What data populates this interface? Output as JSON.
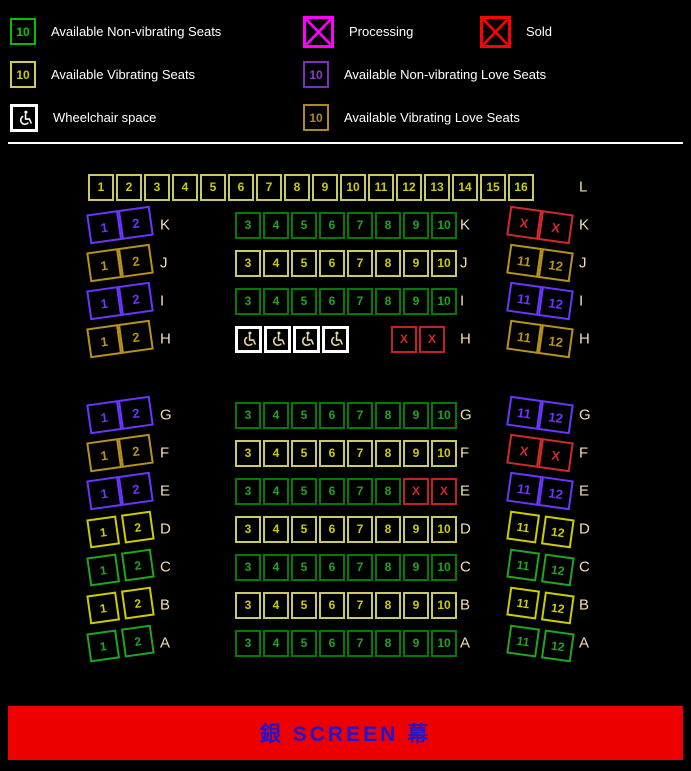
{
  "colors": {
    "background": "#000000",
    "legend_green": "#00c000",
    "legend_vibrating": "#cccc5e",
    "legend_purple": "#7b2fbe",
    "legend_gold": "#aa8822",
    "processing_magenta": "#ff00ff",
    "sold_red": "#ff0000",
    "map_green": "#007d00",
    "map_yellow": "#cccc00",
    "map_purple": "#a51ef0",
    "map_dark_gold": "#a8860b",
    "map_sold_red": "#c32222",
    "wheelchair_white": "#ffffff",
    "row_label_wheat": "#f5deb3",
    "screen_bg": "#ee0000",
    "screen_text": "#2217cc"
  },
  "legend": {
    "rows": [
      [
        {
          "col": 1,
          "box": "green",
          "value": "10",
          "label": "Available Non-vibrating Seats"
        },
        {
          "col": 2,
          "box": "magenta_x",
          "label": "Processing"
        },
        {
          "col": 3,
          "box": "red_x",
          "label": "Sold"
        }
      ],
      [
        {
          "col": 1,
          "box": "vib",
          "value": "10",
          "label": "Available Vibrating Seats"
        },
        {
          "col": 2,
          "box": "purple",
          "value": "10",
          "label": "Available Non-vibrating Love Seats"
        }
      ],
      [
        {
          "col": 1,
          "box": "wheelchair",
          "label": "Wheelchair space"
        },
        {
          "col": 2,
          "box": "gold",
          "value": "10",
          "label": "Available Vibrating Love Seats"
        }
      ]
    ]
  },
  "seatmap": {
    "rows": [
      {
        "label": "L",
        "header": true,
        "center": [
          {
            "t": "vib",
            "n": "1"
          },
          {
            "t": "vib",
            "n": "2"
          },
          {
            "t": "vib",
            "n": "3"
          },
          {
            "t": "vib",
            "n": "4"
          },
          {
            "t": "vib",
            "n": "5"
          },
          {
            "t": "vib",
            "n": "6"
          },
          {
            "t": "vib",
            "n": "7"
          },
          {
            "t": "vib",
            "n": "8"
          },
          {
            "t": "vib",
            "n": "9"
          },
          {
            "t": "vib",
            "n": "10"
          },
          {
            "t": "vib",
            "n": "11"
          },
          {
            "t": "vib",
            "n": "12"
          },
          {
            "t": "vib",
            "n": "13"
          },
          {
            "t": "vib",
            "n": "14"
          },
          {
            "t": "vib",
            "n": "15"
          },
          {
            "t": "vib",
            "n": "16"
          }
        ]
      },
      {
        "label": "K",
        "left": {
          "style": "love",
          "type": "purple",
          "seats": [
            "1",
            "2"
          ]
        },
        "center": [
          {
            "t": "green",
            "n": "3"
          },
          {
            "t": "green",
            "n": "4"
          },
          {
            "t": "green",
            "n": "5"
          },
          {
            "t": "green",
            "n": "6"
          },
          {
            "t": "green",
            "n": "7"
          },
          {
            "t": "green",
            "n": "8"
          },
          {
            "t": "green",
            "n": "9"
          },
          {
            "t": "green",
            "n": "10"
          }
        ],
        "right": {
          "style": "love",
          "type": "red",
          "seats": [
            "X",
            "X"
          ]
        }
      },
      {
        "label": "J",
        "left": {
          "style": "love",
          "type": "gold",
          "seats": [
            "1",
            "2"
          ]
        },
        "center": [
          {
            "t": "vib",
            "n": "3"
          },
          {
            "t": "vib",
            "n": "4"
          },
          {
            "t": "vib",
            "n": "5"
          },
          {
            "t": "vib",
            "n": "6"
          },
          {
            "t": "vib",
            "n": "7"
          },
          {
            "t": "vib",
            "n": "8"
          },
          {
            "t": "vib",
            "n": "9"
          },
          {
            "t": "vib",
            "n": "10"
          }
        ],
        "right": {
          "style": "love",
          "type": "gold",
          "seats": [
            "11",
            "12"
          ]
        }
      },
      {
        "label": "I",
        "left": {
          "style": "love",
          "type": "purple",
          "seats": [
            "1",
            "2"
          ]
        },
        "center": [
          {
            "t": "green",
            "n": "3"
          },
          {
            "t": "green",
            "n": "4"
          },
          {
            "t": "green",
            "n": "5"
          },
          {
            "t": "green",
            "n": "6"
          },
          {
            "t": "green",
            "n": "7"
          },
          {
            "t": "green",
            "n": "8"
          },
          {
            "t": "green",
            "n": "9"
          },
          {
            "t": "green",
            "n": "10"
          }
        ],
        "right": {
          "style": "love",
          "type": "purple",
          "seats": [
            "11",
            "12"
          ]
        }
      },
      {
        "label": "H",
        "left": {
          "style": "love",
          "type": "gold",
          "seats": [
            "1",
            "2"
          ]
        },
        "center": [
          {
            "t": "wc"
          },
          {
            "t": "wc"
          },
          {
            "t": "wc"
          },
          {
            "t": "wc"
          },
          {
            "t": "gap"
          },
          {
            "t": "red",
            "n": "X"
          },
          {
            "t": "red",
            "n": "X"
          }
        ],
        "right": {
          "style": "love",
          "type": "gold",
          "seats": [
            "11",
            "12"
          ]
        }
      },
      {
        "label": "G",
        "spacer_before": true,
        "left": {
          "style": "love",
          "type": "purple",
          "seats": [
            "1",
            "2"
          ]
        },
        "center": [
          {
            "t": "green",
            "n": "3"
          },
          {
            "t": "green",
            "n": "4"
          },
          {
            "t": "green",
            "n": "5"
          },
          {
            "t": "green",
            "n": "6"
          },
          {
            "t": "green",
            "n": "7"
          },
          {
            "t": "green",
            "n": "8"
          },
          {
            "t": "green",
            "n": "9"
          },
          {
            "t": "green",
            "n": "10"
          }
        ],
        "right": {
          "style": "love",
          "type": "purple",
          "seats": [
            "11",
            "12"
          ]
        }
      },
      {
        "label": "F",
        "left": {
          "style": "love",
          "type": "gold",
          "seats": [
            "1",
            "2"
          ]
        },
        "center": [
          {
            "t": "vib",
            "n": "3"
          },
          {
            "t": "vib",
            "n": "4"
          },
          {
            "t": "vib",
            "n": "5"
          },
          {
            "t": "vib",
            "n": "6"
          },
          {
            "t": "vib",
            "n": "7"
          },
          {
            "t": "vib",
            "n": "8"
          },
          {
            "t": "vib",
            "n": "9"
          },
          {
            "t": "vib",
            "n": "10"
          }
        ],
        "right": {
          "style": "love",
          "type": "red",
          "seats": [
            "X",
            "X"
          ]
        }
      },
      {
        "label": "E",
        "left": {
          "style": "love",
          "type": "purple",
          "seats": [
            "1",
            "2"
          ]
        },
        "center": [
          {
            "t": "green",
            "n": "3"
          },
          {
            "t": "green",
            "n": "4"
          },
          {
            "t": "green",
            "n": "5"
          },
          {
            "t": "green",
            "n": "6"
          },
          {
            "t": "green",
            "n": "7"
          },
          {
            "t": "green",
            "n": "8"
          },
          {
            "t": "red",
            "n": "X"
          },
          {
            "t": "red",
            "n": "X"
          }
        ],
        "right": {
          "style": "love",
          "type": "purple",
          "seats": [
            "11",
            "12"
          ]
        }
      },
      {
        "label": "D",
        "left": {
          "style": "single",
          "type": "vib",
          "seats": [
            "1",
            "2"
          ]
        },
        "center": [
          {
            "t": "vib",
            "n": "3"
          },
          {
            "t": "vib",
            "n": "4"
          },
          {
            "t": "vib",
            "n": "5"
          },
          {
            "t": "vib",
            "n": "6"
          },
          {
            "t": "vib",
            "n": "7"
          },
          {
            "t": "vib",
            "n": "8"
          },
          {
            "t": "vib",
            "n": "9"
          },
          {
            "t": "vib",
            "n": "10"
          }
        ],
        "right": {
          "style": "single",
          "type": "vib",
          "seats": [
            "11",
            "12"
          ]
        }
      },
      {
        "label": "C",
        "left": {
          "style": "single",
          "type": "green",
          "seats": [
            "1",
            "2"
          ]
        },
        "center": [
          {
            "t": "green",
            "n": "3"
          },
          {
            "t": "green",
            "n": "4"
          },
          {
            "t": "green",
            "n": "5"
          },
          {
            "t": "green",
            "n": "6"
          },
          {
            "t": "green",
            "n": "7"
          },
          {
            "t": "green",
            "n": "8"
          },
          {
            "t": "green",
            "n": "9"
          },
          {
            "t": "green",
            "n": "10"
          }
        ],
        "right": {
          "style": "single",
          "type": "green",
          "seats": [
            "11",
            "12"
          ]
        }
      },
      {
        "label": "B",
        "left": {
          "style": "single",
          "type": "vib",
          "seats": [
            "1",
            "2"
          ]
        },
        "center": [
          {
            "t": "vib",
            "n": "3"
          },
          {
            "t": "vib",
            "n": "4"
          },
          {
            "t": "vib",
            "n": "5"
          },
          {
            "t": "vib",
            "n": "6"
          },
          {
            "t": "vib",
            "n": "7"
          },
          {
            "t": "vib",
            "n": "8"
          },
          {
            "t": "vib",
            "n": "9"
          },
          {
            "t": "vib",
            "n": "10"
          }
        ],
        "right": {
          "style": "single",
          "type": "vib",
          "seats": [
            "11",
            "12"
          ]
        }
      },
      {
        "label": "A",
        "left": {
          "style": "single",
          "type": "green",
          "seats": [
            "1",
            "2"
          ]
        },
        "center": [
          {
            "t": "green",
            "n": "3"
          },
          {
            "t": "green",
            "n": "4"
          },
          {
            "t": "green",
            "n": "5"
          },
          {
            "t": "green",
            "n": "6"
          },
          {
            "t": "green",
            "n": "7"
          },
          {
            "t": "green",
            "n": "8"
          },
          {
            "t": "green",
            "n": "9"
          },
          {
            "t": "green",
            "n": "10"
          }
        ],
        "right": {
          "style": "single",
          "type": "green",
          "seats": [
            "11",
            "12"
          ]
        }
      }
    ]
  },
  "screen": {
    "label": "銀 SCREEN 幕"
  }
}
